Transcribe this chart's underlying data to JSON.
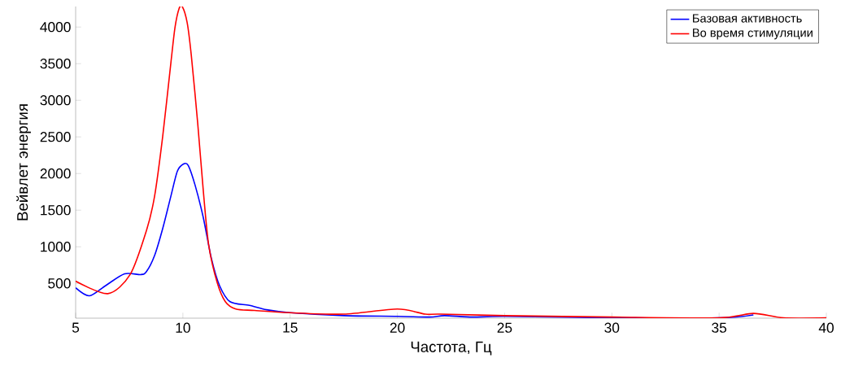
{
  "chart_data": {
    "type": "line",
    "xlabel": "Частота, Гц",
    "ylabel": "Вейвлет энергия",
    "xlim": [
      5,
      40
    ],
    "ylim": [
      25,
      4280
    ],
    "xticks": [
      5,
      10,
      15,
      20,
      25,
      30,
      35,
      40
    ],
    "yticks": [
      500,
      1000,
      1500,
      2000,
      2500,
      3000,
      3500,
      4000
    ],
    "grid": false,
    "legend": "top right",
    "line_style": "solid",
    "marker": "none",
    "series": [
      {
        "name": "Базовая активность",
        "color": "#0000ff",
        "x": [
          5,
          5.64,
          6.4,
          7.28,
          8.03,
          8.3,
          8.68,
          9.06,
          9.44,
          9.74,
          10.03,
          10.25,
          10.57,
          10.95,
          11.33,
          11.71,
          12.2,
          13.1,
          13.9,
          15,
          17.5,
          20,
          21.5,
          22.2,
          23.5,
          25,
          30,
          35,
          36.6
        ],
        "values": [
          440,
          330,
          470,
          630,
          620,
          660,
          880,
          1250,
          1690,
          2030,
          2130,
          2110,
          1840,
          1400,
          840,
          470,
          250,
          200,
          140,
          100,
          60,
          50,
          40,
          60,
          40,
          50,
          30,
          30,
          70
        ]
      },
      {
        "name": "Во время стимуляции",
        "color": "#ff0000",
        "x": [
          5,
          6.5,
          7.54,
          8.3,
          8.68,
          9.06,
          9.44,
          9.63,
          9.82,
          9.97,
          10.2,
          10.39,
          10.69,
          10.95,
          11.2,
          11.6,
          11.98,
          12.47,
          13.34,
          15,
          17.5,
          20,
          21.3,
          22,
          25,
          30,
          35,
          36.6,
          38,
          40
        ],
        "values": [
          530,
          360,
          620,
          1220,
          1690,
          2510,
          3510,
          3990,
          4250,
          4280,
          4060,
          3620,
          2690,
          1770,
          1030,
          510,
          250,
          150,
          130,
          100,
          80,
          150,
          80,
          80,
          60,
          40,
          30,
          90,
          30,
          30
        ]
      }
    ]
  }
}
